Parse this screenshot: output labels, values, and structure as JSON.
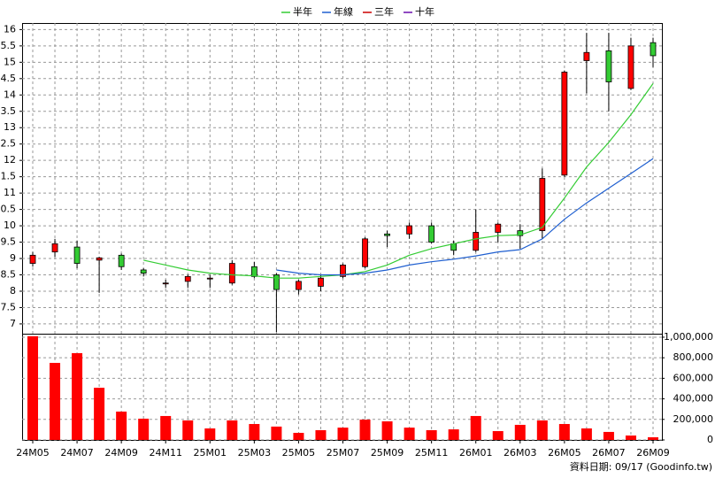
{
  "chart_data": [
    {
      "type": "candlestick",
      "categories": [
        "24M05",
        null,
        "24M07",
        null,
        "24M09",
        null,
        "24M11",
        null,
        "25M01",
        null,
        "25M03",
        null,
        "25M05",
        null,
        "25M07",
        null,
        "25M09",
        null,
        "25M11",
        null,
        "26M01",
        null,
        "26M03",
        null,
        "26M05",
        null,
        "26M07",
        null,
        "26M09"
      ],
      "open": [
        8.85,
        9.2,
        9.35,
        8.95,
        9.1,
        8.65,
        8.25,
        8.3,
        8.4,
        8.25,
        8.75,
        8.5,
        8.05,
        8.15,
        8.45,
        8.75,
        9.75,
        9.75,
        10.0,
        9.45,
        9.25,
        9.8,
        9.85,
        9.85,
        11.55,
        15.05,
        15.35,
        14.2,
        15.6
      ],
      "high": [
        9.2,
        9.6,
        9.55,
        9.05,
        9.15,
        8.7,
        8.35,
        8.5,
        8.5,
        8.95,
        8.9,
        8.55,
        8.35,
        8.5,
        8.85,
        9.65,
        9.85,
        10.1,
        10.1,
        9.55,
        10.5,
        10.1,
        10.05,
        11.75,
        14.75,
        15.9,
        15.9,
        15.75,
        15.75
      ],
      "low": [
        8.75,
        9.05,
        8.7,
        7.95,
        8.65,
        8.45,
        8.1,
        8.1,
        8.1,
        8.2,
        8.4,
        6.75,
        7.9,
        8.0,
        8.4,
        8.7,
        9.35,
        9.6,
        9.45,
        9.1,
        9.2,
        9.5,
        9.3,
        9.6,
        11.5,
        14.05,
        13.5,
        14.15,
        14.85
      ],
      "close": [
        9.1,
        9.45,
        8.85,
        9.02,
        8.75,
        8.55,
        8.25,
        8.45,
        8.4,
        8.85,
        8.45,
        8.05,
        8.3,
        8.4,
        8.8,
        9.6,
        9.7,
        10.0,
        9.5,
        9.25,
        9.8,
        10.05,
        9.7,
        11.45,
        14.7,
        15.3,
        14.4,
        15.5,
        15.2
      ],
      "up_color": "#ff0000",
      "down_color": "#33cc33",
      "series": [
        {
          "name": "半年",
          "color": "#33cc33",
          "values": [
            null,
            null,
            null,
            null,
            null,
            8.95,
            8.8,
            8.65,
            8.55,
            8.5,
            8.47,
            8.4,
            8.4,
            8.45,
            8.5,
            8.6,
            8.8,
            9.1,
            9.3,
            9.45,
            9.6,
            9.7,
            9.72,
            9.95,
            10.85,
            11.8,
            12.55,
            13.4,
            14.35
          ]
        },
        {
          "name": "年線",
          "color": "#1f5fd0",
          "values": [
            null,
            null,
            null,
            null,
            null,
            null,
            null,
            null,
            null,
            null,
            null,
            8.65,
            8.55,
            8.5,
            8.5,
            8.55,
            8.65,
            8.8,
            8.9,
            8.98,
            9.08,
            9.2,
            9.27,
            9.6,
            10.2,
            10.7,
            11.15,
            11.6,
            12.05
          ]
        },
        {
          "name": "三年",
          "color": "#cc0000",
          "values": [
            null,
            null,
            null,
            null,
            null,
            null,
            null,
            null,
            null,
            null,
            null,
            null,
            null,
            null,
            null,
            null,
            null,
            null,
            null,
            null,
            null,
            null,
            null,
            null,
            null,
            null,
            null,
            null,
            null
          ]
        },
        {
          "name": "十年",
          "color": "#6a0dad",
          "values": [
            null,
            null,
            null,
            null,
            null,
            null,
            null,
            null,
            null,
            null,
            null,
            null,
            null,
            null,
            null,
            null,
            null,
            null,
            null,
            null,
            null,
            null,
            null,
            null,
            null,
            null,
            null,
            null,
            null
          ]
        }
      ],
      "ylim": [
        6.7,
        16.2
      ],
      "yticks": [
        16,
        {
          "value": 15.5,
          "label": "5.5"
        },
        15,
        {
          "value": 14.5,
          "label": "4.5"
        },
        14,
        {
          "value": 13.5,
          "label": "3.5"
        },
        13,
        {
          "value": 12.5,
          "label": "2.5"
        },
        12,
        {
          "value": 11.5,
          "label": "1.5"
        },
        11,
        {
          "value": 10.5,
          "label": "0.5"
        },
        10,
        9.5,
        9,
        8.5,
        8,
        7.5,
        7
      ],
      "grid": true,
      "legend": "top"
    },
    {
      "type": "bar",
      "color": "#ff0000",
      "values": [
        1010000,
        750000,
        845000,
        508000,
        276000,
        207000,
        233000,
        190000,
        112000,
        190000,
        155000,
        130000,
        69000,
        95000,
        120000,
        198000,
        181000,
        120000,
        95000,
        103000,
        233000,
        86000,
        147000,
        190000,
        155000,
        112000,
        78000,
        43000,
        26000
      ],
      "ylim": [
        0,
        1034000
      ],
      "yticks": [
        0,
        {
          "value": 200000,
          "label": "200,000"
        },
        {
          "value": 400000,
          "label": "400,000"
        },
        {
          "value": 600000,
          "label": "600,000"
        },
        {
          "value": 800000,
          "label": "800,000"
        },
        {
          "value": 1000000,
          "label": "1,000,000"
        }
      ],
      "grid": true,
      "source": "資料日期: 09/17  (Goodinfo.tw)"
    }
  ]
}
